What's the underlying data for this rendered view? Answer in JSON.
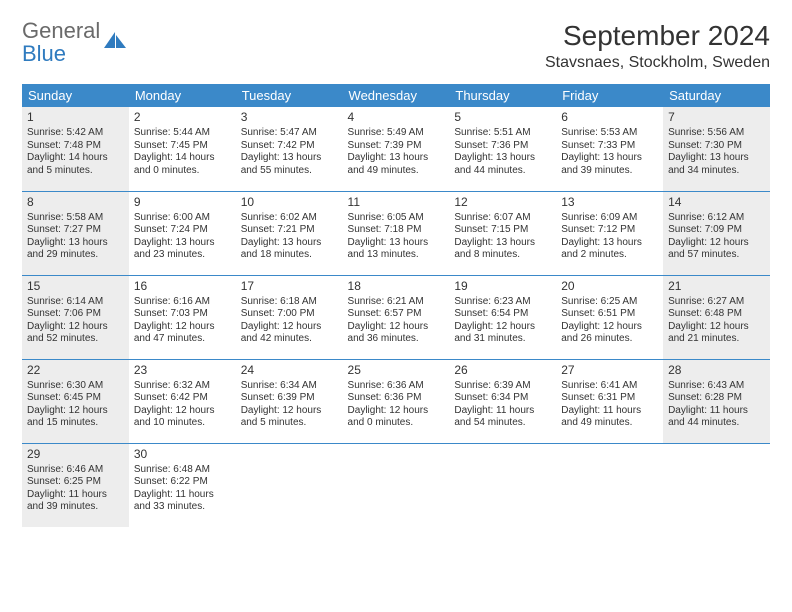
{
  "brand": {
    "part1": "General",
    "part2": "Blue",
    "color_general": "#6a6a6a",
    "color_blue": "#2f7bbf",
    "icon_color": "#2f7bbf"
  },
  "title": "September 2024",
  "location": "Stavsnaes, Stockholm, Sweden",
  "colors": {
    "header_bg": "#3b89c9",
    "header_fg": "#ffffff",
    "cell_border": "#3b89c9",
    "shaded_bg": "#ededed",
    "text": "#333333",
    "background": "#ffffff"
  },
  "day_headers": [
    "Sunday",
    "Monday",
    "Tuesday",
    "Wednesday",
    "Thursday",
    "Friday",
    "Saturday"
  ],
  "weeks": [
    [
      {
        "n": "1",
        "shaded": true,
        "sunrise": "Sunrise: 5:42 AM",
        "sunset": "Sunset: 7:48 PM",
        "daylight1": "Daylight: 14 hours",
        "daylight2": "and 5 minutes."
      },
      {
        "n": "2",
        "shaded": false,
        "sunrise": "Sunrise: 5:44 AM",
        "sunset": "Sunset: 7:45 PM",
        "daylight1": "Daylight: 14 hours",
        "daylight2": "and 0 minutes."
      },
      {
        "n": "3",
        "shaded": false,
        "sunrise": "Sunrise: 5:47 AM",
        "sunset": "Sunset: 7:42 PM",
        "daylight1": "Daylight: 13 hours",
        "daylight2": "and 55 minutes."
      },
      {
        "n": "4",
        "shaded": false,
        "sunrise": "Sunrise: 5:49 AM",
        "sunset": "Sunset: 7:39 PM",
        "daylight1": "Daylight: 13 hours",
        "daylight2": "and 49 minutes."
      },
      {
        "n": "5",
        "shaded": false,
        "sunrise": "Sunrise: 5:51 AM",
        "sunset": "Sunset: 7:36 PM",
        "daylight1": "Daylight: 13 hours",
        "daylight2": "and 44 minutes."
      },
      {
        "n": "6",
        "shaded": false,
        "sunrise": "Sunrise: 5:53 AM",
        "sunset": "Sunset: 7:33 PM",
        "daylight1": "Daylight: 13 hours",
        "daylight2": "and 39 minutes."
      },
      {
        "n": "7",
        "shaded": true,
        "sunrise": "Sunrise: 5:56 AM",
        "sunset": "Sunset: 7:30 PM",
        "daylight1": "Daylight: 13 hours",
        "daylight2": "and 34 minutes."
      }
    ],
    [
      {
        "n": "8",
        "shaded": true,
        "sunrise": "Sunrise: 5:58 AM",
        "sunset": "Sunset: 7:27 PM",
        "daylight1": "Daylight: 13 hours",
        "daylight2": "and 29 minutes."
      },
      {
        "n": "9",
        "shaded": false,
        "sunrise": "Sunrise: 6:00 AM",
        "sunset": "Sunset: 7:24 PM",
        "daylight1": "Daylight: 13 hours",
        "daylight2": "and 23 minutes."
      },
      {
        "n": "10",
        "shaded": false,
        "sunrise": "Sunrise: 6:02 AM",
        "sunset": "Sunset: 7:21 PM",
        "daylight1": "Daylight: 13 hours",
        "daylight2": "and 18 minutes."
      },
      {
        "n": "11",
        "shaded": false,
        "sunrise": "Sunrise: 6:05 AM",
        "sunset": "Sunset: 7:18 PM",
        "daylight1": "Daylight: 13 hours",
        "daylight2": "and 13 minutes."
      },
      {
        "n": "12",
        "shaded": false,
        "sunrise": "Sunrise: 6:07 AM",
        "sunset": "Sunset: 7:15 PM",
        "daylight1": "Daylight: 13 hours",
        "daylight2": "and 8 minutes."
      },
      {
        "n": "13",
        "shaded": false,
        "sunrise": "Sunrise: 6:09 AM",
        "sunset": "Sunset: 7:12 PM",
        "daylight1": "Daylight: 13 hours",
        "daylight2": "and 2 minutes."
      },
      {
        "n": "14",
        "shaded": true,
        "sunrise": "Sunrise: 6:12 AM",
        "sunset": "Sunset: 7:09 PM",
        "daylight1": "Daylight: 12 hours",
        "daylight2": "and 57 minutes."
      }
    ],
    [
      {
        "n": "15",
        "shaded": true,
        "sunrise": "Sunrise: 6:14 AM",
        "sunset": "Sunset: 7:06 PM",
        "daylight1": "Daylight: 12 hours",
        "daylight2": "and 52 minutes."
      },
      {
        "n": "16",
        "shaded": false,
        "sunrise": "Sunrise: 6:16 AM",
        "sunset": "Sunset: 7:03 PM",
        "daylight1": "Daylight: 12 hours",
        "daylight2": "and 47 minutes."
      },
      {
        "n": "17",
        "shaded": false,
        "sunrise": "Sunrise: 6:18 AM",
        "sunset": "Sunset: 7:00 PM",
        "daylight1": "Daylight: 12 hours",
        "daylight2": "and 42 minutes."
      },
      {
        "n": "18",
        "shaded": false,
        "sunrise": "Sunrise: 6:21 AM",
        "sunset": "Sunset: 6:57 PM",
        "daylight1": "Daylight: 12 hours",
        "daylight2": "and 36 minutes."
      },
      {
        "n": "19",
        "shaded": false,
        "sunrise": "Sunrise: 6:23 AM",
        "sunset": "Sunset: 6:54 PM",
        "daylight1": "Daylight: 12 hours",
        "daylight2": "and 31 minutes."
      },
      {
        "n": "20",
        "shaded": false,
        "sunrise": "Sunrise: 6:25 AM",
        "sunset": "Sunset: 6:51 PM",
        "daylight1": "Daylight: 12 hours",
        "daylight2": "and 26 minutes."
      },
      {
        "n": "21",
        "shaded": true,
        "sunrise": "Sunrise: 6:27 AM",
        "sunset": "Sunset: 6:48 PM",
        "daylight1": "Daylight: 12 hours",
        "daylight2": "and 21 minutes."
      }
    ],
    [
      {
        "n": "22",
        "shaded": true,
        "sunrise": "Sunrise: 6:30 AM",
        "sunset": "Sunset: 6:45 PM",
        "daylight1": "Daylight: 12 hours",
        "daylight2": "and 15 minutes."
      },
      {
        "n": "23",
        "shaded": false,
        "sunrise": "Sunrise: 6:32 AM",
        "sunset": "Sunset: 6:42 PM",
        "daylight1": "Daylight: 12 hours",
        "daylight2": "and 10 minutes."
      },
      {
        "n": "24",
        "shaded": false,
        "sunrise": "Sunrise: 6:34 AM",
        "sunset": "Sunset: 6:39 PM",
        "daylight1": "Daylight: 12 hours",
        "daylight2": "and 5 minutes."
      },
      {
        "n": "25",
        "shaded": false,
        "sunrise": "Sunrise: 6:36 AM",
        "sunset": "Sunset: 6:36 PM",
        "daylight1": "Daylight: 12 hours",
        "daylight2": "and 0 minutes."
      },
      {
        "n": "26",
        "shaded": false,
        "sunrise": "Sunrise: 6:39 AM",
        "sunset": "Sunset: 6:34 PM",
        "daylight1": "Daylight: 11 hours",
        "daylight2": "and 54 minutes."
      },
      {
        "n": "27",
        "shaded": false,
        "sunrise": "Sunrise: 6:41 AM",
        "sunset": "Sunset: 6:31 PM",
        "daylight1": "Daylight: 11 hours",
        "daylight2": "and 49 minutes."
      },
      {
        "n": "28",
        "shaded": true,
        "sunrise": "Sunrise: 6:43 AM",
        "sunset": "Sunset: 6:28 PM",
        "daylight1": "Daylight: 11 hours",
        "daylight2": "and 44 minutes."
      }
    ],
    [
      {
        "n": "29",
        "shaded": true,
        "sunrise": "Sunrise: 6:46 AM",
        "sunset": "Sunset: 6:25 PM",
        "daylight1": "Daylight: 11 hours",
        "daylight2": "and 39 minutes."
      },
      {
        "n": "30",
        "shaded": false,
        "sunrise": "Sunrise: 6:48 AM",
        "sunset": "Sunset: 6:22 PM",
        "daylight1": "Daylight: 11 hours",
        "daylight2": "and 33 minutes."
      },
      {
        "empty": true
      },
      {
        "empty": true
      },
      {
        "empty": true
      },
      {
        "empty": true
      },
      {
        "empty": true
      }
    ]
  ]
}
